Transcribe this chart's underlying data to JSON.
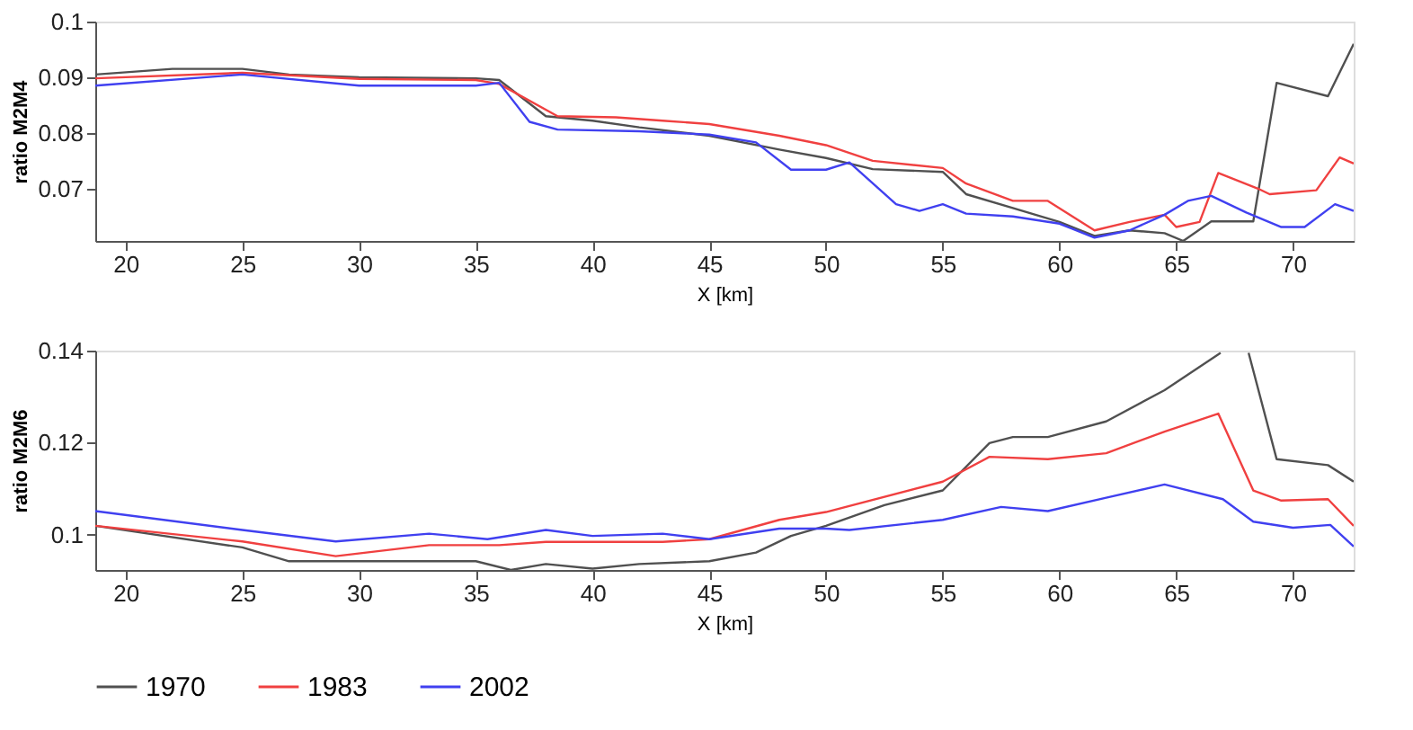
{
  "chart_data": [
    {
      "type": "line",
      "xlabel": "X [km]",
      "ylabel": "ratio M2M4",
      "xlim": [
        18.7,
        72.6
      ],
      "ylim": [
        0.0606,
        0.1
      ],
      "xticks": [
        20,
        25,
        30,
        35,
        40,
        45,
        50,
        55,
        60,
        65,
        70
      ],
      "yticks": [
        0.07,
        0.08,
        0.09,
        0.1
      ],
      "grid": false,
      "legend": false,
      "series": [
        {
          "color": "#505050",
          "x": [
            18.7,
            22,
            25,
            27,
            30,
            35,
            36,
            38,
            40,
            42,
            45,
            48,
            50,
            52,
            55,
            56,
            58,
            60,
            61.5,
            63,
            64.5,
            65.3,
            66.5,
            68.3,
            69.3,
            71.5,
            72.6
          ],
          "values": [
            0.0905,
            0.0915,
            0.0915,
            0.0905,
            0.09,
            0.0898,
            0.0895,
            0.083,
            0.0822,
            0.081,
            0.0795,
            0.077,
            0.0755,
            0.0735,
            0.073,
            0.069,
            0.0665,
            0.064,
            0.0615,
            0.0625,
            0.062,
            0.0606,
            0.0641,
            0.0641,
            0.089,
            0.0866,
            0.096
          ]
        },
        {
          "color": "#f04040",
          "x": [
            18.7,
            25,
            30,
            35,
            36,
            38.5,
            41,
            43,
            45,
            48,
            50,
            52,
            55,
            56,
            58,
            59.5,
            61.5,
            63,
            64.5,
            65,
            66,
            66.8,
            68.5,
            69,
            71,
            72,
            72.6
          ],
          "values": [
            0.0898,
            0.0908,
            0.0897,
            0.0895,
            0.0888,
            0.083,
            0.0828,
            0.0822,
            0.0816,
            0.0795,
            0.0778,
            0.075,
            0.0737,
            0.0709,
            0.0678,
            0.0678,
            0.0625,
            0.064,
            0.0653,
            0.0631,
            0.064,
            0.0728,
            0.07,
            0.069,
            0.0697,
            0.0756,
            0.0745
          ]
        },
        {
          "color": "#4040f0",
          "x": [
            18.7,
            25,
            30,
            35,
            36,
            37.3,
            38.5,
            42,
            45,
            47,
            48.5,
            50,
            51,
            53,
            54,
            55,
            56,
            58,
            60,
            61.5,
            63,
            64.5,
            65.5,
            66.5,
            68,
            69.5,
            70.5,
            71.8,
            72.6
          ],
          "values": [
            0.0885,
            0.0905,
            0.0885,
            0.0885,
            0.089,
            0.082,
            0.0806,
            0.0803,
            0.0797,
            0.0783,
            0.0734,
            0.0734,
            0.0747,
            0.0672,
            0.066,
            0.0672,
            0.0655,
            0.065,
            0.0637,
            0.0612,
            0.0625,
            0.0653,
            0.0678,
            0.0687,
            0.0657,
            0.0631,
            0.0631,
            0.0672,
            0.066
          ]
        }
      ]
    },
    {
      "type": "line",
      "xlabel": "X [km]",
      "ylabel": "ratio M2M6",
      "xlim": [
        18.7,
        72.6
      ],
      "ylim": [
        0.0923,
        0.14
      ],
      "xticks": [
        20,
        25,
        30,
        35,
        40,
        45,
        50,
        55,
        60,
        65,
        70
      ],
      "yticks": [
        0.1,
        0.12,
        0.14
      ],
      "grid": false,
      "legend": "bottom",
      "series": [
        {
          "name": "1970",
          "color": "#505050",
          "x": [
            18.7,
            25,
            27,
            30,
            35,
            36.5,
            38,
            40,
            42,
            45,
            47,
            48.5,
            50,
            52.5,
            55,
            57,
            58,
            59.5,
            62,
            64.5,
            66.9,
            67.5,
            68.1,
            69.3,
            71.5,
            72.6
          ],
          "values": [
            0.1019,
            0.0972,
            0.0942,
            0.0942,
            0.0942,
            0.0923,
            0.0936,
            0.0926,
            0.0936,
            0.0942,
            0.0961,
            0.0997,
            0.1019,
            0.1064,
            0.1096,
            0.1199,
            0.1212,
            0.1212,
            0.1246,
            0.1314,
            0.1395,
            null,
            0.1395,
            0.1164,
            0.1151,
            0.1115
          ]
        },
        {
          "name": "1983",
          "color": "#f04040",
          "x": [
            18.7,
            25,
            29,
            33,
            36,
            38,
            43,
            45,
            48,
            50,
            55,
            57,
            59.5,
            62,
            64.5,
            66.8,
            68.3,
            69.5,
            71.5,
            72.6
          ],
          "values": [
            0.1019,
            0.0985,
            0.0953,
            0.0977,
            0.0977,
            0.0984,
            0.0984,
            0.099,
            0.1032,
            0.1049,
            0.1115,
            0.1169,
            0.1164,
            0.1177,
            0.1224,
            0.1263,
            0.1096,
            0.1074,
            0.1077,
            0.1019
          ]
        },
        {
          "name": "2002",
          "color": "#4040f0",
          "x": [
            18.7,
            25,
            29,
            33,
            35.5,
            38,
            40,
            43,
            45,
            48,
            50,
            51,
            55,
            57.5,
            59.5,
            62,
            64.5,
            67,
            68.3,
            70,
            71.6,
            72.6
          ],
          "values": [
            0.1051,
            0.101,
            0.0985,
            0.1002,
            0.099,
            0.101,
            0.0997,
            0.1002,
            0.099,
            0.1013,
            0.1013,
            0.101,
            0.1032,
            0.106,
            0.1051,
            0.108,
            0.1109,
            0.1077,
            0.1028,
            0.1015,
            0.1021,
            0.0974
          ]
        }
      ]
    }
  ]
}
